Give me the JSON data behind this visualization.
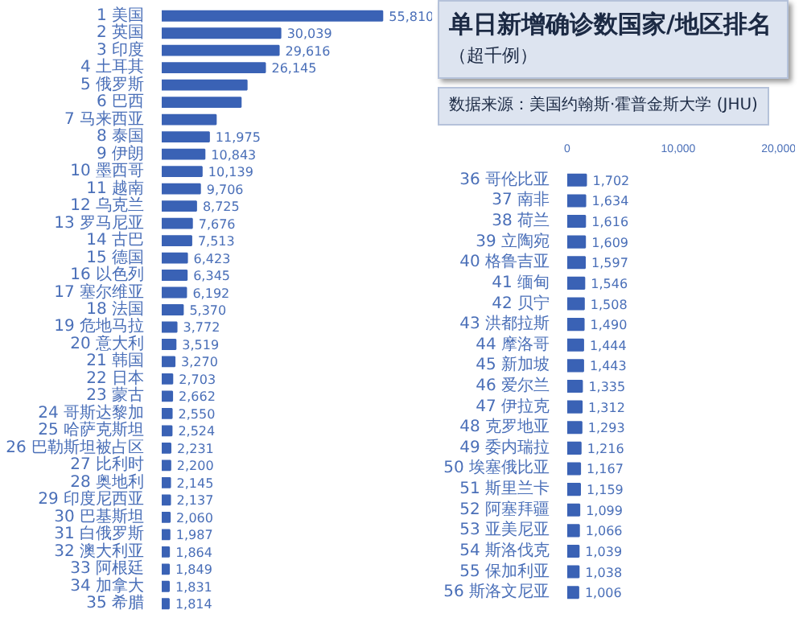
{
  "chart_data": [
    {
      "type": "bar",
      "orientation": "horizontal",
      "color": "#3a62b5",
      "grid": false,
      "tick_labels": "y",
      "categories": [
        "1 美国",
        "2 英国",
        "3 印度",
        "4 土耳其",
        "5 俄罗斯",
        "6 巴西",
        "7 马来西亚",
        "8 泰国",
        "9 伊朗",
        "10 墨西哥",
        "11 越南",
        "12 乌克兰",
        "13 罗马尼亚",
        "14 古巴",
        "15 德国",
        "16 以色列",
        "17 塞尔维亚",
        "18 法国",
        "19 危地马拉",
        "20 意大利",
        "21 韩国",
        "22 日本",
        "23 蒙古",
        "24 哥斯达黎加",
        "25 哈萨克斯坦",
        "26 巴勒斯坦被占区",
        "27 比利时",
        "28 奥地利",
        "29 印度尼西亚",
        "30 巴基斯坦",
        "31 白俄罗斯",
        "32 澳大利亚",
        "33 阿根廷",
        "34 加拿大",
        "35 希腊"
      ],
      "values": [
        55810,
        30039,
        29616,
        26145,
        21500,
        20000,
        13700,
        11975,
        10843,
        10139,
        9706,
        8725,
        7676,
        7513,
        6423,
        6345,
        6192,
        5370,
        3772,
        3519,
        3270,
        2703,
        2662,
        2550,
        2524,
        2231,
        2200,
        2145,
        2137,
        2060,
        1987,
        1864,
        1849,
        1831,
        1814
      ],
      "value_labels": [
        "55,810",
        "30,039",
        "29,616",
        "26,145",
        null,
        null,
        null,
        "11,975",
        "10,843",
        "10,139",
        "9,706",
        "8,725",
        "7,676",
        "7,513",
        "6,423",
        "6,345",
        "6,192",
        "5,370",
        "3,772",
        "3,519",
        "3,270",
        "2,703",
        "2,662",
        "2,550",
        "2,524",
        "2,231",
        "2,200",
        "2,145",
        "2,137",
        "2,060",
        "1,987",
        "1,864",
        "1,849",
        "1,831",
        "1,814"
      ]
    },
    {
      "type": "bar",
      "orientation": "horizontal",
      "title": "单日新增确诊数国家/地区排名",
      "subtitle": "（超千例）",
      "annotations": [
        "数据来源：美国约翰斯·霍普金斯大学 (JHU)"
      ],
      "color": "#3a62b5",
      "grid": false,
      "xlim": [
        0,
        20000
      ],
      "xticks": [
        0,
        {
          "value": 10000,
          "label": "10,000"
        },
        {
          "value": 20000,
          "label": "20,000"
        }
      ],
      "categories": [
        "36 哥伦比亚",
        "37 南非",
        "38 荷兰",
        "39 立陶宛",
        "40 格鲁吉亚",
        "41 缅甸",
        "42 贝宁",
        "43 洪都拉斯",
        "44 摩洛哥",
        "45 新加坡",
        "46 爱尔兰",
        "47 伊拉克",
        "48 克罗地亚",
        "49 委内瑞拉",
        "50 埃塞俄比亚",
        "51 斯里兰卡",
        "52 阿塞拜疆",
        "53 亚美尼亚",
        "54 斯洛伐克",
        "55 保加利亚",
        "56 斯洛文尼亚"
      ],
      "values": [
        1702,
        1634,
        1616,
        1609,
        1597,
        1546,
        1508,
        1490,
        1444,
        1443,
        1335,
        1312,
        1293,
        1216,
        1167,
        1159,
        1099,
        1066,
        1039,
        1038,
        1006
      ],
      "value_labels": [
        "1,702",
        "1,634",
        "1,616",
        "1,609",
        "1,597",
        "1,546",
        "1,508",
        "1,490",
        "1,444",
        "1,443",
        "1,335",
        "1,312",
        "1,293",
        "1,216",
        "1,167",
        "1,159",
        "1,099",
        "1,066",
        "1,039",
        "1,038",
        "1,006"
      ]
    }
  ]
}
